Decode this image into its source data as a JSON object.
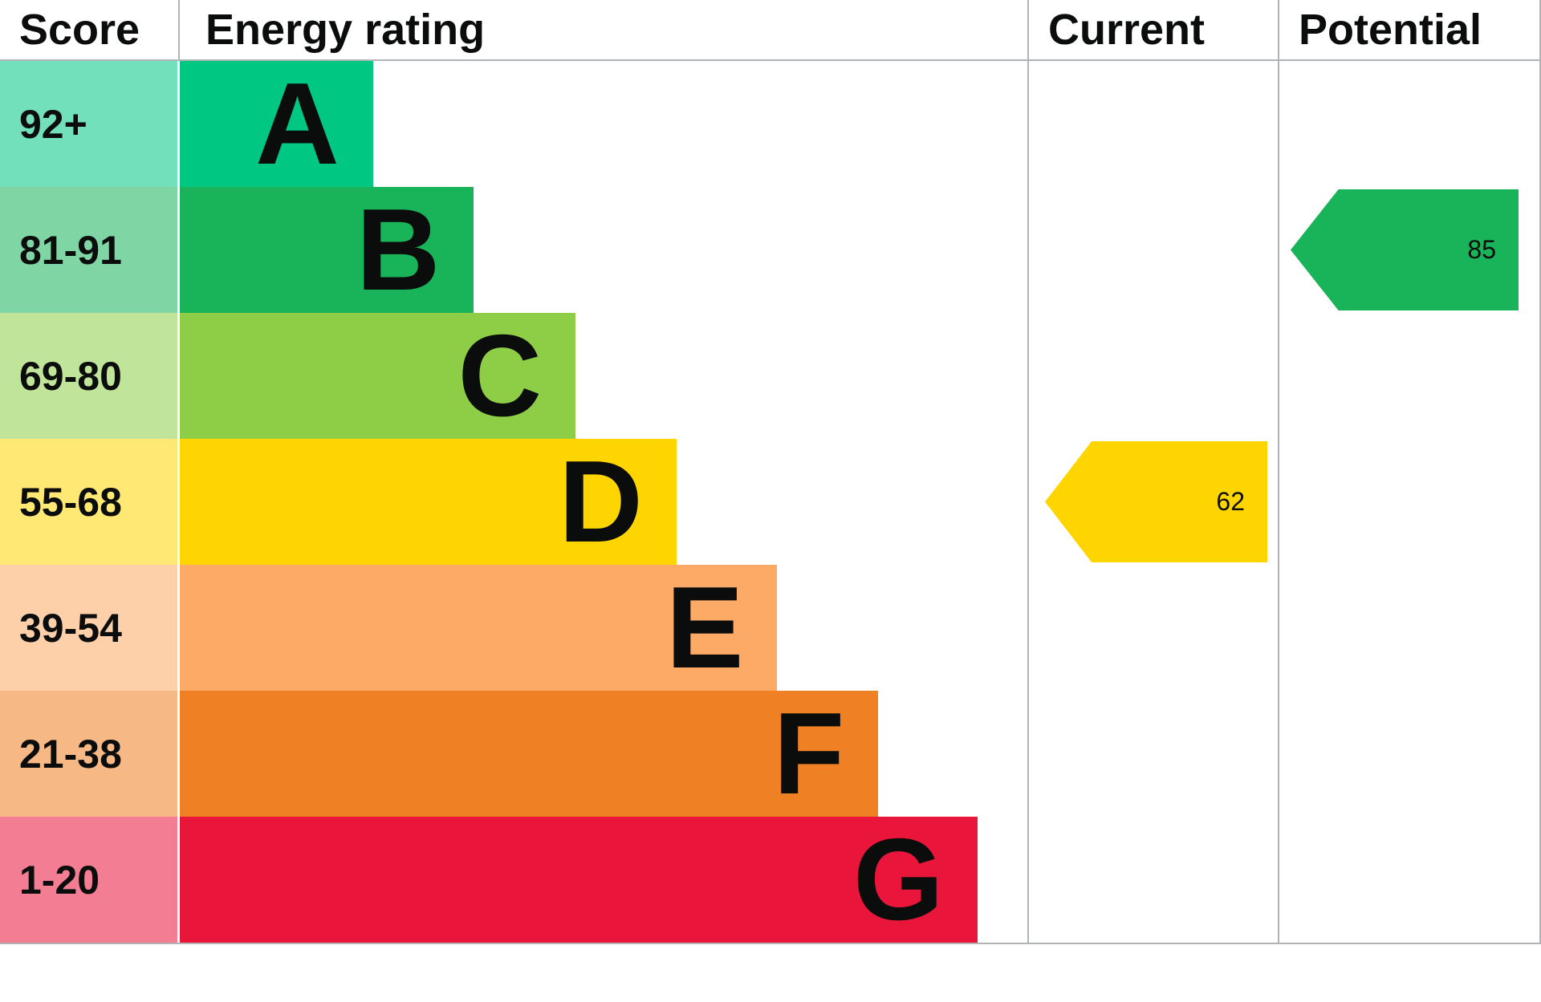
{
  "header": {
    "score": "Score",
    "energy_rating": "Energy rating",
    "current": "Current",
    "potential": "Potential"
  },
  "chart_data": {
    "type": "bar",
    "title": "Energy rating (EPC energy efficiency bands)",
    "columns": [
      "Score",
      "Energy rating",
      "Current",
      "Potential"
    ],
    "bands": [
      {
        "grade": "A",
        "score": "92+",
        "color": "#00c781",
        "score_color": "#72e0ba",
        "bar_width_pct": 22.8
      },
      {
        "grade": "B",
        "score": "81-91",
        "color": "#19b459",
        "score_color": "#80d5a4",
        "bar_width_pct": 34.7
      },
      {
        "grade": "C",
        "score": "69-80",
        "color": "#8dce46",
        "score_color": "#c0e499",
        "bar_width_pct": 46.7
      },
      {
        "grade": "D",
        "score": "55-68",
        "color": "#ffd500",
        "score_color": "#ffe873",
        "bar_width_pct": 58.6
      },
      {
        "grade": "E",
        "score": "39-54",
        "color": "#fcaa65",
        "score_color": "#fdd0aa",
        "bar_width_pct": 70.5
      },
      {
        "grade": "F",
        "score": "21-38",
        "color": "#ef8023",
        "score_color": "#f6b986",
        "bar_width_pct": 82.4
      },
      {
        "grade": "G",
        "score": "1-20",
        "color": "#e9153b",
        "score_color": "#f37e93",
        "bar_width_pct": 94.1
      }
    ],
    "current": {
      "value": 62,
      "band": "D",
      "band_index": 3,
      "color": "#ffd500"
    },
    "potential": {
      "value": 85,
      "band": "B",
      "band_index": 1,
      "color": "#19b459"
    },
    "border_color": "#b1b4b6",
    "legend_position": "none",
    "grid": false
  }
}
